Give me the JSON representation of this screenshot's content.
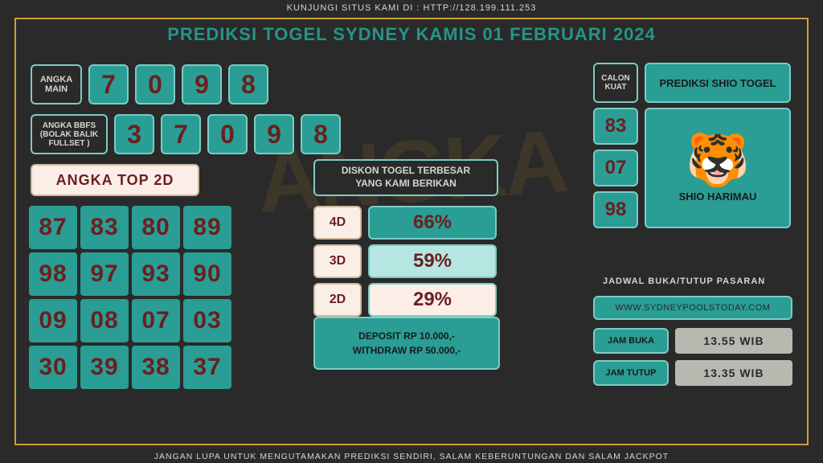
{
  "top_banner": "KUNJUNGI SITUS KAMI DI : HTTP://128.199.111.253",
  "bottom_banner": "JANGAN LUPA UNTUK MENGUTAMAKAN PREDIKSI SENDIRI, SALAM KEBERUNTUNGAN DAN SALAM JACKPOT",
  "title": "PREDIKSI TOGEL SYDNEY KAMIS 01 FEBRUARI 2024",
  "colors": {
    "bg": "#2a2a2a",
    "teal": "#2a9d94",
    "teal_border": "#7cccc5",
    "cream": "#fbeee6",
    "maroon": "#6b1f1f",
    "gold": "#c9a22f",
    "grey_text": "#d6d6ce",
    "grey_pill": "#b8b8b0"
  },
  "angka_main": {
    "label": "ANGKA\nMAIN",
    "digits": [
      "7",
      "0",
      "9",
      "8"
    ]
  },
  "angka_bbfs": {
    "label": "ANGKA BBFS\n(BOLAK BALIK\nFULLSET )",
    "digits": [
      "3",
      "7",
      "0",
      "9",
      "8"
    ]
  },
  "top2d": {
    "label": "ANGKA TOP 2D",
    "cells": [
      {
        "v": "87",
        "c": "#6b1f1f"
      },
      {
        "v": "83",
        "c": "#6b1f1f"
      },
      {
        "v": "80",
        "c": "#6b1f1f"
      },
      {
        "v": "89",
        "c": "#6b1f1f"
      },
      {
        "v": "98",
        "c": "#6b1f1f"
      },
      {
        "v": "97",
        "c": "#6b1f1f"
      },
      {
        "v": "93",
        "c": "#6b1f1f"
      },
      {
        "v": "90",
        "c": "#6b1f1f"
      },
      {
        "v": "09",
        "c": "#6b1f1f"
      },
      {
        "v": "08",
        "c": "#6b1f1f"
      },
      {
        "v": "07",
        "c": "#6b1f1f"
      },
      {
        "v": "03",
        "c": "#6b1f1f"
      },
      {
        "v": "30",
        "c": "#6b1f1f"
      },
      {
        "v": "39",
        "c": "#6b1f1f"
      },
      {
        "v": "38",
        "c": "#6b1f1f"
      },
      {
        "v": "37",
        "c": "#6b1f1f"
      }
    ]
  },
  "diskon": {
    "label": "DISKON TOGEL TERBESAR\nYANG KAMI BERIKAN",
    "rows": [
      {
        "k": "4D",
        "v": "66%",
        "bg": "#2a9d94",
        "fg": "#6b1f1f"
      },
      {
        "k": "3D",
        "v": "59%",
        "bg": "#b6e6e1",
        "fg": "#6b1f1f"
      },
      {
        "k": "2D",
        "v": "29%",
        "bg": "#fbeee6",
        "fg": "#6b1f1f"
      }
    ],
    "deposit": "DEPOSIT RP 10.000,-",
    "withdraw": "WITHDRAW RP 50.000,-"
  },
  "shio": {
    "calon_label": "CALON\nKUAT",
    "prediksi_label": "PREDIKSI SHIO TOGEL",
    "nums": [
      "83",
      "07",
      "98"
    ],
    "name": "SHIO HARIMAU",
    "emoji": "🐯"
  },
  "jadwal": {
    "label": "JADWAL BUKA/TUTUP PASARAN",
    "site": "WWW.SYDNEYPOOLSTODAY.COM",
    "buka_label": "JAM BUKA",
    "buka_val": "13.55 WIB",
    "tutup_label": "JAM TUTUP",
    "tutup_val": "13.35 WIB"
  },
  "watermark": "ANGKA"
}
